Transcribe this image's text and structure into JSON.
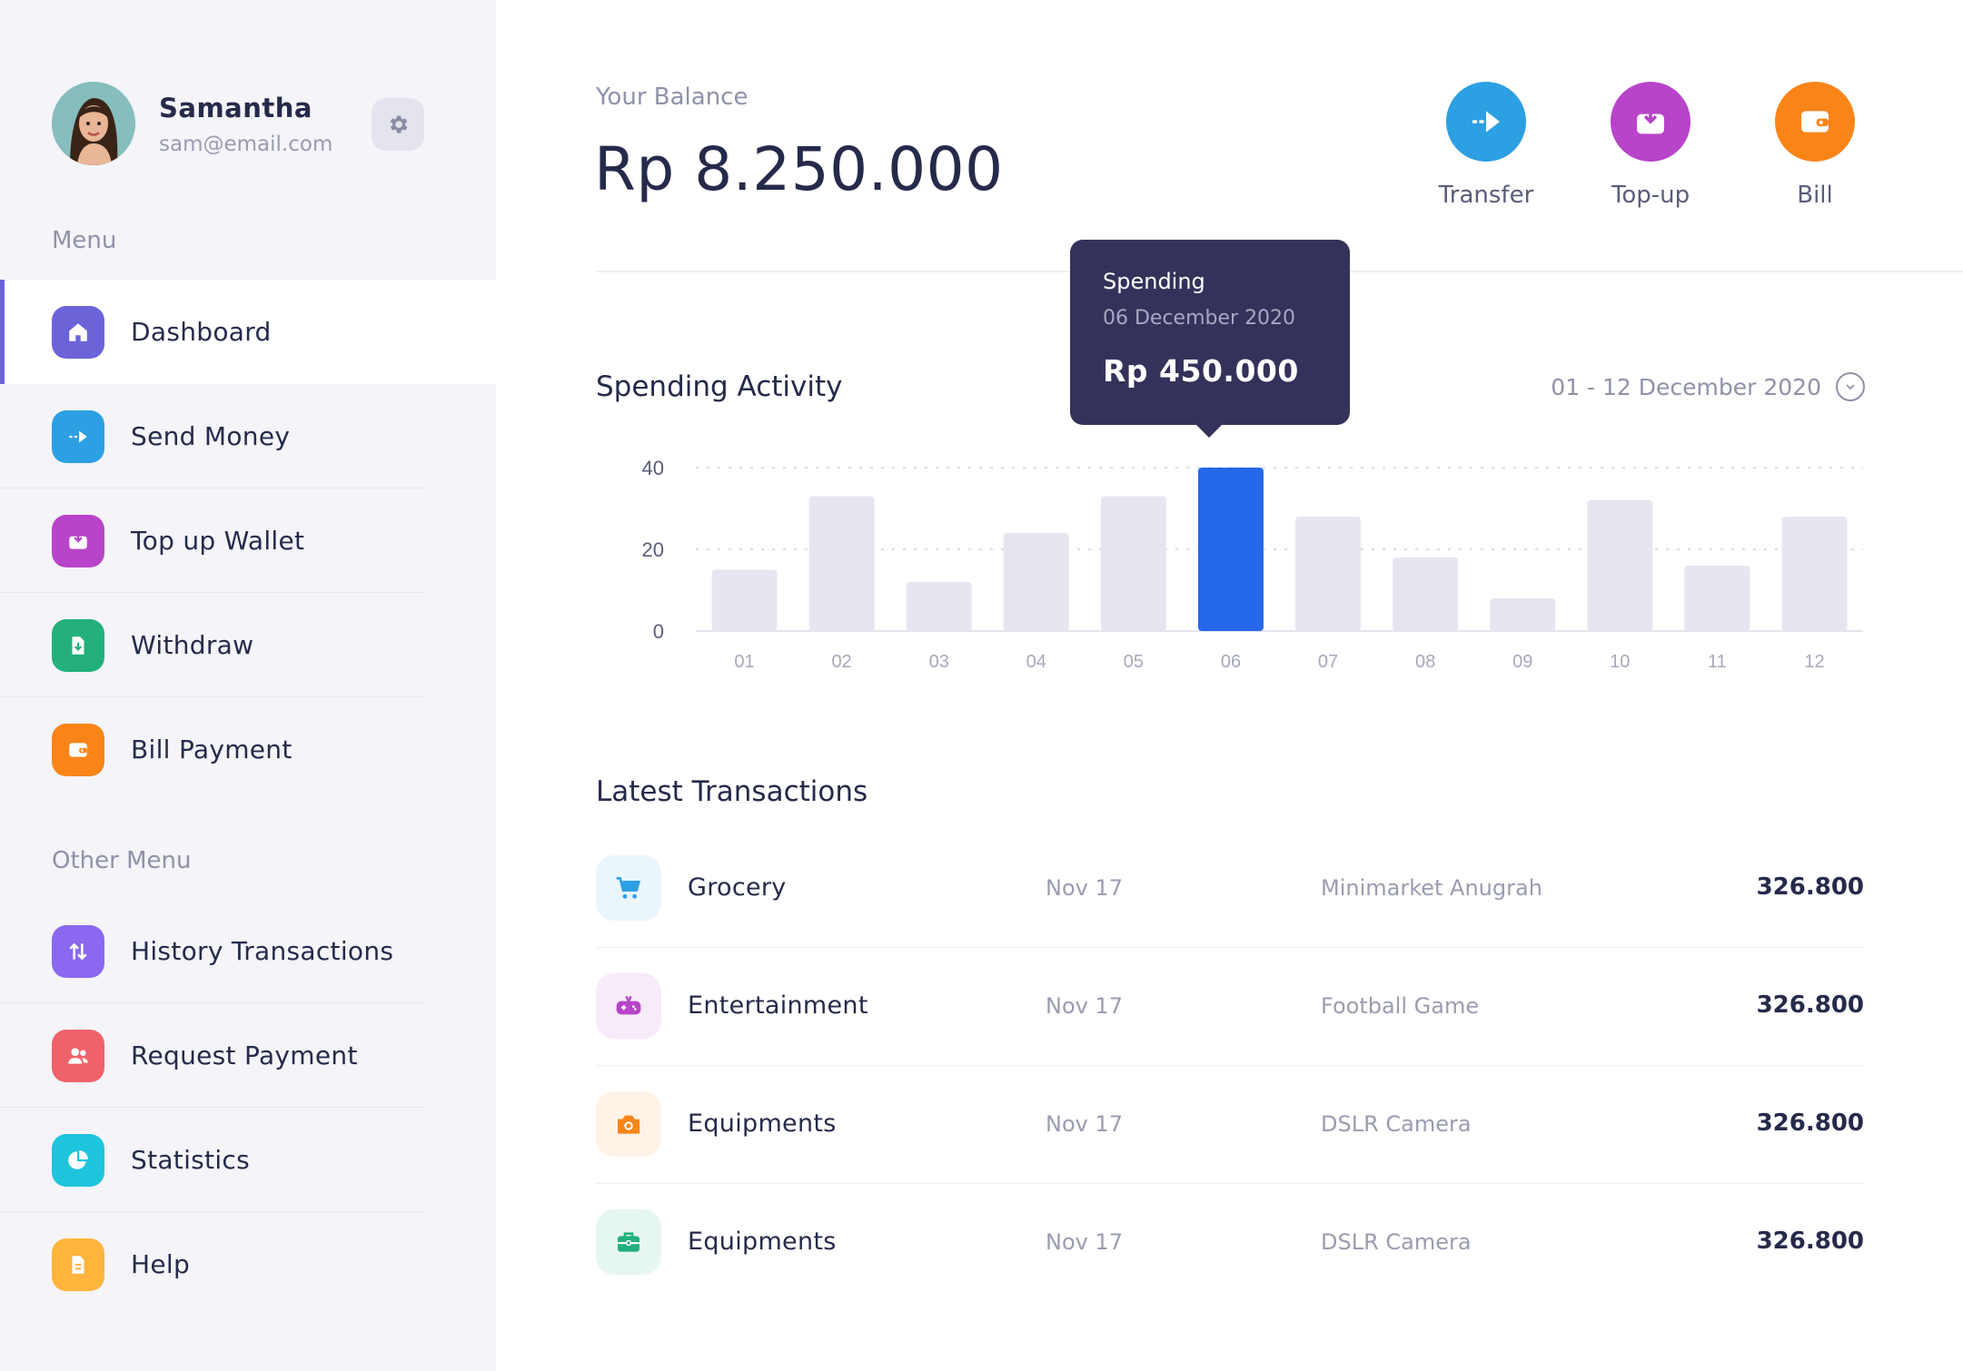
{
  "profile": {
    "name": "Samantha",
    "email": "sam@email.com",
    "settings_icon": "gear-icon"
  },
  "sidebar": {
    "menu_label": "Menu",
    "menu_items": [
      {
        "label": "Dashboard",
        "icon": "home-icon",
        "color": "#6c63d9",
        "active": true
      },
      {
        "label": "Send Money",
        "icon": "send-icon",
        "color": "#2d9fe3"
      },
      {
        "label": "Top up Wallet",
        "icon": "wallet-download-icon",
        "color": "#b844c9"
      },
      {
        "label": "Withdraw",
        "icon": "withdraw-icon",
        "color": "#23b07d"
      },
      {
        "label": "Bill Payment",
        "icon": "bill-wallet-icon",
        "color": "#f98519"
      }
    ],
    "other_label": "Other Menu",
    "other_items": [
      {
        "label": "History Transactions",
        "icon": "swap-arrows-icon",
        "color": "#8a68ef"
      },
      {
        "label": "Request Payment",
        "icon": "users-icon",
        "color": "#f0626a"
      },
      {
        "label": "Statistics",
        "icon": "pie-chart-icon",
        "color": "#1ec5dc"
      },
      {
        "label": "Help",
        "icon": "document-icon",
        "color": "#ffb43c"
      }
    ]
  },
  "balance": {
    "label": "Your Balance",
    "value": "Rp 8.250.000"
  },
  "quick_actions": [
    {
      "label": "Transfer",
      "icon": "send-icon",
      "color": "#2d9fe3"
    },
    {
      "label": "Top-up",
      "icon": "wallet-download-icon",
      "color": "#b844c9"
    },
    {
      "label": "Bill",
      "icon": "bill-wallet-icon",
      "color": "#f98519"
    }
  ],
  "spending": {
    "title": "Spending Activity",
    "date_range": "01 - 12 December 2020",
    "tooltip": {
      "title": "Spending",
      "date": "06 December 2020",
      "value": "Rp 450.000"
    }
  },
  "chart_data": {
    "type": "bar",
    "categories": [
      "01",
      "02",
      "03",
      "04",
      "05",
      "06",
      "07",
      "08",
      "09",
      "10",
      "11",
      "12"
    ],
    "values": [
      15,
      33,
      12,
      24,
      33,
      40,
      28,
      18,
      8,
      32,
      16,
      28
    ],
    "highlight_index": 5,
    "ylim": [
      0,
      40
    ],
    "yticks": [
      0,
      20,
      40
    ],
    "grid": true,
    "colors": {
      "bar": "#e6e6f0",
      "highlight": "#2568ea"
    }
  },
  "transactions": {
    "title": "Latest Transactions",
    "rows": [
      {
        "category": "Grocery",
        "date": "Nov 17",
        "description": "Minimarket Anugrah",
        "amount": "326.800",
        "icon": "cart-icon",
        "color": "#2d9fe3",
        "bg": "#eaf5fc"
      },
      {
        "category": "Entertainment",
        "date": "Nov 17",
        "description": "Football Game",
        "amount": "326.800",
        "icon": "gamepad-icon",
        "color": "#b844c9",
        "bg": "#f7eaf9"
      },
      {
        "category": "Equipments",
        "date": "Nov 17",
        "description": "DSLR Camera",
        "amount": "326.800",
        "icon": "camera-icon",
        "color": "#f98519",
        "bg": "#fff2e6"
      },
      {
        "category": "Equipments",
        "date": "Nov 17",
        "description": "DSLR Camera",
        "amount": "326.800",
        "icon": "briefcase-icon",
        "color": "#23b07d",
        "bg": "#e6f6f0"
      }
    ]
  }
}
